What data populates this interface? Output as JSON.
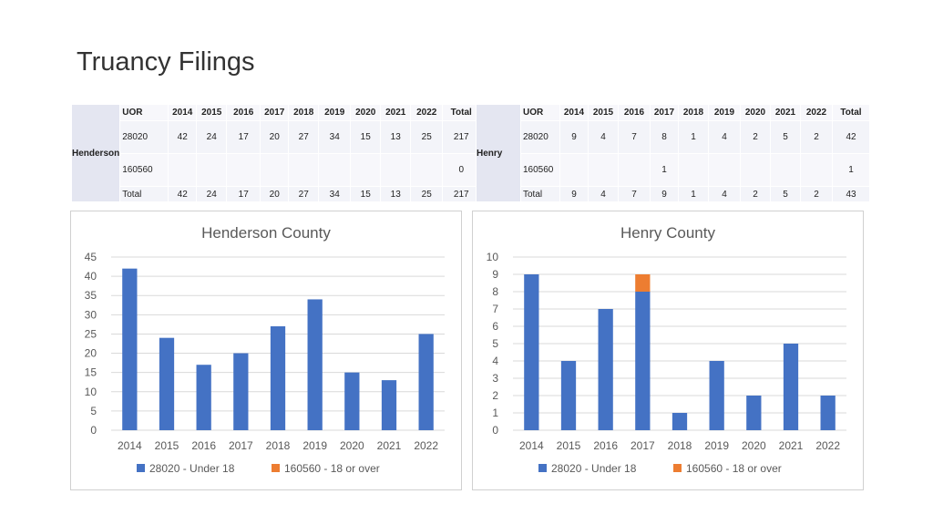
{
  "page": {
    "title": "Truancy Filings"
  },
  "tables": [
    {
      "county": "Henderson",
      "header": [
        "UOR",
        "2014",
        "2015",
        "2016",
        "2017",
        "2018",
        "2019",
        "2020",
        "2021",
        "2022",
        "Total"
      ],
      "rows": [
        [
          "28020",
          "42",
          "24",
          "17",
          "20",
          "27",
          "34",
          "15",
          "13",
          "25",
          "217"
        ],
        [
          "160560",
          "",
          "",
          "",
          "",
          "",
          "",
          "",
          "",
          "",
          "0"
        ],
        [
          "Total",
          "42",
          "24",
          "17",
          "20",
          "27",
          "34",
          "15",
          "13",
          "25",
          "217"
        ]
      ]
    },
    {
      "county": "Henry",
      "header": [
        "UOR",
        "2014",
        "2015",
        "2016",
        "2017",
        "2018",
        "2019",
        "2020",
        "2021",
        "2022",
        "Total"
      ],
      "rows": [
        [
          "28020",
          "9",
          "4",
          "7",
          "8",
          "1",
          "4",
          "2",
          "5",
          "2",
          "42"
        ],
        [
          "160560",
          "",
          "",
          "",
          "1",
          "",
          "",
          "",
          "",
          "",
          "1"
        ],
        [
          "Total",
          "9",
          "4",
          "7",
          "9",
          "1",
          "4",
          "2",
          "5",
          "2",
          "43"
        ]
      ]
    }
  ],
  "chart_data": [
    {
      "type": "bar",
      "stacked": true,
      "title": "Henderson County",
      "categories": [
        "2014",
        "2015",
        "2016",
        "2017",
        "2018",
        "2019",
        "2020",
        "2021",
        "2022"
      ],
      "series": [
        {
          "name": "28020 - Under 18",
          "values": [
            42,
            24,
            17,
            20,
            27,
            34,
            15,
            13,
            25
          ],
          "color": "#4472c4"
        },
        {
          "name": "160560 - 18 or over",
          "values": [
            0,
            0,
            0,
            0,
            0,
            0,
            0,
            0,
            0
          ],
          "color": "#ed7d31"
        }
      ],
      "ylim": [
        0,
        45
      ],
      "yticks": [
        "0",
        "5",
        "10",
        "15",
        "20",
        "25",
        "30",
        "35",
        "40",
        "45"
      ],
      "grid": true,
      "legend": "bottom"
    },
    {
      "type": "bar",
      "stacked": true,
      "title": "Henry County",
      "categories": [
        "2014",
        "2015",
        "2016",
        "2017",
        "2018",
        "2019",
        "2020",
        "2021",
        "2022"
      ],
      "series": [
        {
          "name": "28020 - Under 18",
          "values": [
            9,
            4,
            7,
            8,
            1,
            4,
            2,
            5,
            2
          ],
          "color": "#4472c4"
        },
        {
          "name": "160560 - 18 or over",
          "values": [
            0,
            0,
            0,
            1,
            0,
            0,
            0,
            0,
            0
          ],
          "color": "#ed7d31"
        }
      ],
      "ylim": [
        0,
        10
      ],
      "yticks": [
        "0",
        "1",
        "2",
        "3",
        "4",
        "5",
        "6",
        "7",
        "8",
        "9",
        "10"
      ],
      "grid": true,
      "legend": "bottom"
    }
  ]
}
